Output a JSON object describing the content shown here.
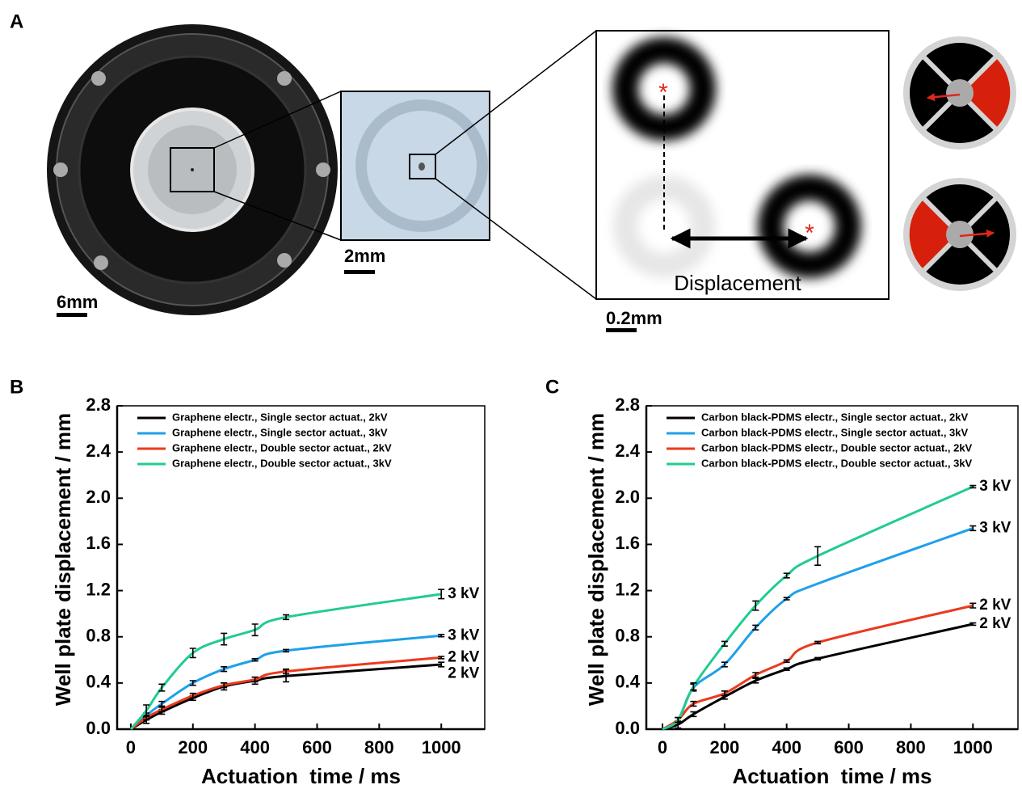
{
  "figure": {
    "panel_a": {
      "label": "A",
      "scale_bars": [
        "6mm",
        "2mm",
        "0.2mm"
      ],
      "annotation": "Displacement",
      "marker": "*"
    }
  },
  "chart_data": [
    {
      "type": "line",
      "panel_label": "B",
      "xlabel": "Actuation  time / ms",
      "ylabel": "Well plate displacement / mm",
      "xlim": [
        -44,
        1140
      ],
      "xticks": [
        0,
        200,
        400,
        600,
        800,
        1000
      ],
      "ylim": [
        0,
        2.8
      ],
      "yticks": [
        {
          "value": 0,
          "label": "0.0"
        },
        0.4,
        0.8,
        {
          "value": 1.2,
          "label": "1.2"
        },
        {
          "value": 1.6,
          "label": "1.6"
        },
        {
          "value": 2,
          "label": "2.0"
        },
        2.4,
        2.8
      ],
      "x": [
        0,
        50,
        100,
        200,
        300,
        400,
        500,
        1000
      ],
      "series": [
        {
          "name": "Graphene electr., Single sector actuat., 2kV",
          "color": "#000000",
          "values": [
            0,
            0.08,
            0.15,
            0.27,
            0.37,
            0.42,
            0.46,
            0.56
          ],
          "errors": [
            null,
            0.03,
            0.02,
            0.02,
            0.03,
            0.03,
            0.05,
            0.02
          ],
          "end_label": "2 kV"
        },
        {
          "name": "Graphene electr., Single sector actuat., 3kV",
          "color": "#1ea0ea",
          "values": [
            0,
            0.12,
            0.22,
            0.4,
            0.52,
            0.6,
            0.68,
            0.81
          ],
          "errors": [
            null,
            0.02,
            0.02,
            0.02,
            0.02,
            0.01,
            0.01,
            0.01
          ],
          "end_label": "3 kV"
        },
        {
          "name": "Graphene electr., Double sector actuat., 2kV",
          "color": "#ea3a1e",
          "values": [
            0,
            0.1,
            0.17,
            0.29,
            0.38,
            0.43,
            0.5,
            0.62
          ],
          "errors": [
            null,
            0.02,
            0.02,
            0.02,
            0.02,
            0.02,
            0.02,
            0.01
          ],
          "end_label": "2 kV"
        },
        {
          "name": "Graphene electr., Double sector actuat., 3kV",
          "color": "#22cc8e",
          "values": [
            0,
            0.16,
            0.36,
            0.66,
            0.78,
            0.86,
            0.97,
            1.17
          ],
          "errors": [
            null,
            0.05,
            0.03,
            0.04,
            0.05,
            0.05,
            0.02,
            0.04
          ],
          "end_label": "3 kV"
        }
      ]
    },
    {
      "type": "line",
      "panel_label": "C",
      "xlabel": "Actuation  time / ms",
      "ylabel": "Well plate displacement / mm",
      "xlim": [
        -52,
        1145
      ],
      "xticks": [
        0,
        200,
        400,
        600,
        800,
        1000
      ],
      "ylim": [
        0,
        2.8
      ],
      "yticks": [
        {
          "value": 0,
          "label": "0.0"
        },
        0.4,
        0.8,
        {
          "value": 1.2,
          "label": "1.2"
        },
        {
          "value": 1.6,
          "label": "1.6"
        },
        {
          "value": 2,
          "label": "2.0"
        },
        2.4,
        2.8
      ],
      "x": [
        0,
        50,
        100,
        200,
        300,
        400,
        500,
        1000
      ],
      "series": [
        {
          "name": "Carbon black-PDMS electr., Single sector actuat., 2kV",
          "color": "#000000",
          "values": [
            0,
            0.04,
            0.13,
            0.28,
            0.42,
            0.52,
            0.61,
            0.91
          ],
          "errors": [
            null,
            0.03,
            0.02,
            0.02,
            0.02,
            0.01,
            0.01,
            0.01
          ],
          "end_label": "2 kV"
        },
        {
          "name": "Carbon black-PDMS electr., Single sector actuat., 3kV",
          "color": "#1ea0ea",
          "values": [
            0,
            0.08,
            0.36,
            0.56,
            0.88,
            1.13,
            1.26,
            1.74
          ],
          "errors": [
            null,
            0.02,
            0.03,
            0.02,
            0.02,
            0.01,
            null,
            0.02
          ],
          "end_label": "3 kV"
        },
        {
          "name": "Carbon black-PDMS electr., Double sector actuat., 2kV",
          "color": "#ea3a1e",
          "values": [
            0,
            0.08,
            0.22,
            0.31,
            0.47,
            0.59,
            0.75,
            1.07
          ],
          "errors": [
            null,
            0.02,
            0.02,
            0.02,
            0.02,
            0.01,
            0.01,
            0.02
          ],
          "end_label": "2 kV"
        },
        {
          "name": "Carbon black-PDMS electr., Double sector actuat., 3kV",
          "color": "#22cc8e",
          "values": [
            0,
            0.08,
            0.37,
            0.74,
            1.07,
            1.33,
            1.5,
            2.1
          ],
          "errors": [
            null,
            0.02,
            0.03,
            0.02,
            0.04,
            0.02,
            0.08,
            0.01
          ],
          "end_label": "3 kV"
        }
      ]
    }
  ]
}
